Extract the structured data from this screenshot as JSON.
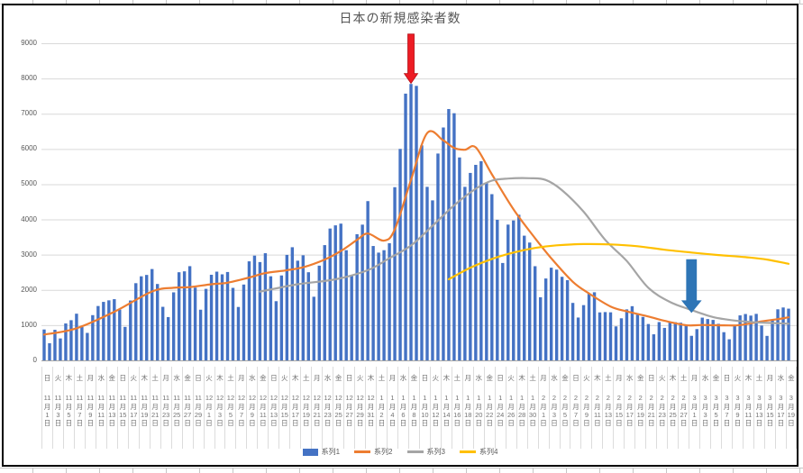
{
  "chart_data": {
    "type": "combo",
    "title": "日本の新規感染者数",
    "ylim": [
      0,
      9000
    ],
    "y_ticks": [
      0,
      1000,
      2000,
      3000,
      4000,
      5000,
      6000,
      7000,
      8000,
      9000
    ],
    "x_start_date": "2020-11-01",
    "x_end_date": "2021-03-19",
    "x_tick_labels": [
      "日|11|1",
      "火|11|3",
      "木|11|5",
      "土|11|7",
      "月|11|9",
      "水|11|11",
      "金|11|13",
      "日|11|15",
      "火|11|17",
      "木|11|19",
      "土|11|21",
      "月|11|23",
      "水|11|25",
      "金|11|27",
      "日|11|29",
      "火|12|1",
      "木|12|3",
      "土|12|5",
      "月|12|7",
      "水|12|9",
      "金|12|11",
      "日|12|13",
      "火|12|15",
      "木|12|17",
      "土|12|19",
      "月|12|21",
      "水|12|23",
      "金|12|25",
      "日|12|27",
      "火|12|29",
      "木|12|31",
      "土|1|2",
      "月|1|4",
      "水|1|6",
      "金|1|8",
      "日|1|10",
      "火|1|12",
      "木|1|14",
      "土|1|16",
      "月|1|18",
      "水|1|20",
      "金|1|22",
      "日|1|24",
      "火|1|26",
      "木|1|28",
      "土|1|30",
      "月|2|1",
      "水|2|3",
      "金|2|5",
      "日|2|7",
      "火|2|9",
      "木|2|11",
      "土|2|13",
      "月|2|15",
      "水|2|17",
      "金|2|19",
      "日|2|21",
      "火|2|23",
      "木|2|25",
      "土|2|27",
      "月|3|1",
      "水|3|3",
      "金|3|5",
      "日|3|7",
      "火|3|9",
      "木|3|11",
      "土|3|13",
      "月|3|15",
      "水|3|17",
      "金|3|19"
    ],
    "series": [
      {
        "name": "系列1",
        "type": "bar",
        "color": "#4472C4",
        "values": [
          877,
          487,
          867,
          623,
          1048,
          1140,
          1325,
          947,
          780,
          1284,
          1543,
          1660,
          1704,
          1737,
          1440,
          951,
          1699,
          2191,
          2386,
          2425,
          2592,
          2168,
          1520,
          1229,
          1931,
          2501,
          2527,
          2674,
          2066,
          1438,
          2030,
          2430,
          2518,
          2442,
          2508,
          2058,
          1516,
          2152,
          2811,
          2973,
          2790,
          3041,
          2387,
          1680,
          2410,
          2994,
          3211,
          2829,
          2982,
          2501,
          1806,
          2688,
          3271,
          3742,
          3832,
          3881,
          3127,
          2403,
          3580,
          3852,
          4520,
          3246,
          3058,
          3127,
          3325,
          4915,
          6001,
          7570,
          7844,
          7790,
          6102,
          4925,
          4541,
          5870,
          6609,
          7133,
          7014,
          5759,
          4925,
          5320,
          5549,
          5653,
          5045,
          4717,
          3990,
          2764,
          3853,
          3971,
          4133,
          3539,
          3344,
          2673,
          1792,
          2324,
          2631,
          2576,
          2372,
          2277,
          1631,
          1216,
          1568,
          1887,
          1933,
          1362,
          1371,
          1364,
          965,
          1194,
          1448,
          1538,
          1301,
          1234,
          1032,
          740,
          1087,
          922,
          1076,
          1083,
          1069,
          999,
          697,
          888,
          1213,
          1173,
          1148,
          1038,
          800,
          599,
          973,
          1277,
          1316,
          1271,
          1320,
          989,
          695,
          1133,
          1450,
          1501,
          1468
        ]
      },
      {
        "name": "系列2",
        "type": "line",
        "color": "#ED7D31",
        "points": [
          [
            0,
            730
          ],
          [
            6,
            910
          ],
          [
            13,
            1379
          ],
          [
            20,
            1955
          ],
          [
            24,
            2060
          ],
          [
            27,
            2079
          ],
          [
            31,
            2160
          ],
          [
            34,
            2205
          ],
          [
            38,
            2350
          ],
          [
            41,
            2477
          ],
          [
            45,
            2560
          ],
          [
            48,
            2642
          ],
          [
            52,
            2860
          ],
          [
            55,
            3103
          ],
          [
            58,
            3420
          ],
          [
            60,
            3599
          ],
          [
            63,
            3398
          ],
          [
            65,
            3720
          ],
          [
            68,
            5120
          ],
          [
            71,
            6450
          ],
          [
            74,
            6240
          ],
          [
            76,
            6028
          ],
          [
            78,
            5979
          ],
          [
            80,
            6044
          ],
          [
            83,
            5281
          ],
          [
            87,
            4285
          ],
          [
            91,
            3468
          ],
          [
            94,
            2900
          ],
          [
            98,
            2229
          ],
          [
            101,
            1900
          ],
          [
            105,
            1529
          ],
          [
            108,
            1390
          ],
          [
            112,
            1245
          ],
          [
            115,
            1122
          ],
          [
            119,
            997
          ],
          [
            122,
            1004
          ],
          [
            126,
            994
          ],
          [
            129,
            1001
          ],
          [
            133,
            1106
          ],
          [
            136,
            1170
          ],
          [
            138,
            1222
          ]
        ]
      },
      {
        "name": "系列3",
        "type": "line",
        "color": "#A5A5A5",
        "points": [
          [
            40,
            1950
          ],
          [
            47,
            2160
          ],
          [
            54,
            2300
          ],
          [
            60,
            2560
          ],
          [
            64,
            2900
          ],
          [
            68,
            3260
          ],
          [
            72,
            3820
          ],
          [
            76,
            4400
          ],
          [
            80,
            4870
          ],
          [
            83,
            5100
          ],
          [
            86,
            5160
          ],
          [
            90,
            5170
          ],
          [
            93,
            5120
          ],
          [
            96,
            4830
          ],
          [
            100,
            4220
          ],
          [
            104,
            3420
          ],
          [
            108,
            2820
          ],
          [
            112,
            2060
          ],
          [
            116,
            1660
          ],
          [
            120,
            1430
          ],
          [
            124,
            1230
          ],
          [
            128,
            1130
          ],
          [
            132,
            1080
          ],
          [
            138,
            1040
          ]
        ]
      },
      {
        "name": "系列4",
        "type": "line",
        "color": "#FFC000",
        "points": [
          [
            75,
            2300
          ],
          [
            79,
            2630
          ],
          [
            83,
            2880
          ],
          [
            87,
            3060
          ],
          [
            91,
            3190
          ],
          [
            95,
            3265
          ],
          [
            100,
            3300
          ],
          [
            105,
            3290
          ],
          [
            110,
            3240
          ],
          [
            115,
            3140
          ],
          [
            120,
            3060
          ],
          [
            125,
            2990
          ],
          [
            130,
            2930
          ],
          [
            134,
            2860
          ],
          [
            138,
            2740
          ]
        ]
      }
    ],
    "annotations": [
      {
        "name": "red-arrow",
        "shape": "down-arrow",
        "color": "#ED1C24",
        "outline": "#B30E14",
        "day": 68,
        "value_top": 9260,
        "value_tip": 7860,
        "shaft_w": 7,
        "head_w": 15,
        "head_h": 11
      },
      {
        "name": "blue-arrow",
        "shape": "down-arrow",
        "color": "#2E75B6",
        "outline": "#2E75B6",
        "day": 120,
        "value_top": 2860,
        "value_tip": 1360,
        "shaft_w": 11,
        "head_w": 21,
        "head_h": 13
      }
    ],
    "style": {
      "gridline_color": "#D9D9D9",
      "axis_color": "#A6A6A6",
      "tick_text_color": "#737373",
      "legend_position": "bottom"
    }
  }
}
